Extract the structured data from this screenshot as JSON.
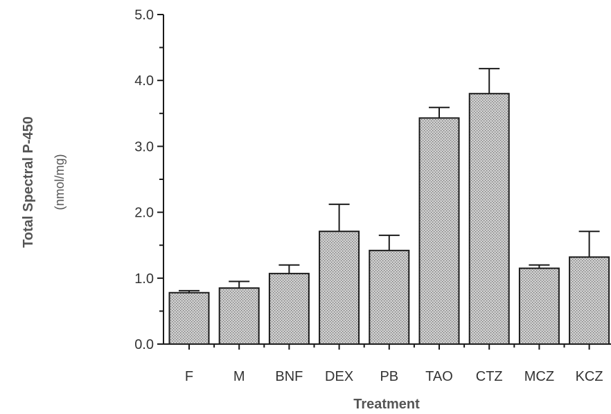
{
  "chart_data": {
    "type": "bar",
    "categories": [
      "F",
      "M",
      "BNF",
      "DEX",
      "PB",
      "TAO",
      "CTZ",
      "MCZ",
      "KCZ"
    ],
    "values": [
      0.78,
      0.85,
      1.07,
      1.71,
      1.42,
      3.43,
      3.8,
      1.15,
      1.32
    ],
    "errors": [
      0.03,
      0.1,
      0.13,
      0.41,
      0.23,
      0.16,
      0.38,
      0.05,
      0.39
    ],
    "xlabel": "Treatment",
    "ylabel": "Total Spectral P-450",
    "ylabel_unit": "(nmol/mg)",
    "ylim": [
      0,
      5
    ],
    "yticks": [
      "0.0",
      "1.0",
      "2.0",
      "3.0",
      "4.0",
      "5.0"
    ],
    "grid": false,
    "legend": "none",
    "bar_fill": "stippled gray"
  },
  "colors": {
    "bar_fill": "#c8c8c8",
    "stipple": "#7a7a7a",
    "stroke": "#1a1a1a",
    "text": "#333333"
  }
}
